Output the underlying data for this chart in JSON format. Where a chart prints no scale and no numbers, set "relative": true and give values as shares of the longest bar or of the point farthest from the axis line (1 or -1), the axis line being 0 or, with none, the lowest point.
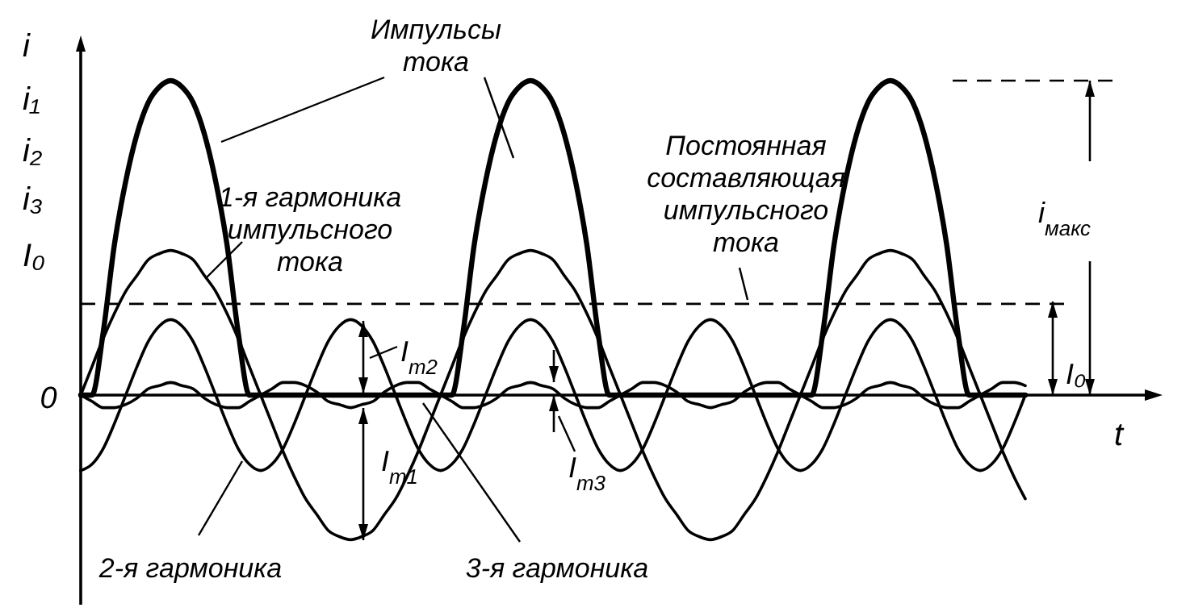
{
  "chart_data": {
    "type": "line",
    "relative": true,
    "xlabel": "t",
    "ylabel": "i\ni₁\ni₂\ni₃\nI₀",
    "categories": [
      null,
      null,
      null,
      null,
      null,
      null,
      null,
      null,
      null,
      null,
      null,
      null,
      null,
      null,
      null,
      null,
      null,
      null,
      null,
      null,
      null,
      null,
      null,
      null,
      null,
      null,
      null,
      null,
      null,
      null,
      null,
      null,
      null,
      null,
      null,
      null,
      null,
      null,
      null,
      null,
      null,
      null,
      null,
      null,
      null,
      null,
      null,
      null,
      null,
      null,
      null,
      null,
      null,
      null,
      null,
      null,
      null,
      null,
      null,
      null,
      null,
      null,
      null,
      null,
      null,
      null,
      null,
      null,
      null,
      null,
      null,
      null,
      null,
      null,
      null,
      null,
      null,
      null,
      null,
      null,
      null,
      null,
      null,
      null,
      null
    ],
    "series": [
      {
        "name": "Импульсы тока",
        "color": "#000000",
        "values": [
          0,
          0,
          0.2,
          0.48,
          0.68,
          0.83,
          0.93,
          0.98,
          1,
          0.98,
          0.93,
          0.83,
          0.68,
          0.48,
          0.2,
          0,
          0,
          0,
          0,
          0,
          0,
          0,
          0,
          0,
          0,
          0,
          0,
          0,
          0,
          0,
          0,
          0,
          0,
          0,
          0.2,
          0.48,
          0.68,
          0.83,
          0.93,
          0.98,
          1,
          0.98,
          0.93,
          0.83,
          0.68,
          0.48,
          0.2,
          0,
          0,
          0,
          0,
          0,
          0,
          0,
          0,
          0,
          0,
          0,
          0,
          0,
          0,
          0,
          0,
          0,
          0,
          0,
          0.2,
          0.48,
          0.68,
          0.83,
          0.93,
          0.98,
          1,
          0.98,
          0.93,
          0.83,
          0.68,
          0.48,
          0.2,
          0,
          0,
          0,
          0,
          0,
          0
        ]
      },
      {
        "name": "1-я гармоника импульсного тока",
        "color": "#000000",
        "values": [
          0,
          0.09,
          0.18,
          0.26,
          0.33,
          0.38,
          0.43,
          0.45,
          0.46,
          0.45,
          0.43,
          0.38,
          0.33,
          0.26,
          0.18,
          0.09,
          0,
          -0.09,
          -0.18,
          -0.26,
          -0.33,
          -0.38,
          -0.43,
          -0.45,
          -0.46,
          -0.45,
          -0.43,
          -0.38,
          -0.33,
          -0.26,
          -0.18,
          -0.09,
          0,
          0.09,
          0.18,
          0.26,
          0.33,
          0.38,
          0.43,
          0.45,
          0.46,
          0.45,
          0.43,
          0.38,
          0.33,
          0.26,
          0.18,
          0.09,
          0,
          -0.09,
          -0.18,
          -0.26,
          -0.33,
          -0.38,
          -0.43,
          -0.45,
          -0.46,
          -0.45,
          -0.43,
          -0.38,
          -0.33,
          -0.26,
          -0.18,
          -0.09,
          0,
          0.09,
          0.18,
          0.26,
          0.33,
          0.38,
          0.43,
          0.45,
          0.46,
          0.45,
          0.43,
          0.38,
          0.33,
          0.26,
          0.18,
          0.09,
          0,
          -0.09,
          -0.18,
          -0.26,
          -0.33
        ]
      },
      {
        "name": "2-я гармоника",
        "color": "#000000",
        "values": [
          -0.24,
          -0.22,
          -0.17,
          -0.09,
          0,
          0.09,
          0.17,
          0.22,
          0.24,
          0.22,
          0.17,
          0.09,
          0,
          -0.09,
          -0.17,
          -0.22,
          -0.24,
          -0.22,
          -0.17,
          -0.09,
          0,
          0.09,
          0.17,
          0.22,
          0.24,
          0.22,
          0.17,
          0.09,
          0,
          -0.09,
          -0.17,
          -0.22,
          -0.24,
          -0.22,
          -0.17,
          -0.09,
          0,
          0.09,
          0.17,
          0.22,
          0.24,
          0.22,
          0.17,
          0.09,
          0,
          -0.09,
          -0.17,
          -0.22,
          -0.24,
          -0.22,
          -0.17,
          -0.09,
          0,
          0.09,
          0.17,
          0.22,
          0.24,
          0.22,
          0.17,
          0.09,
          0,
          -0.09,
          -0.17,
          -0.22,
          -0.24,
          -0.22,
          -0.17,
          -0.09,
          0,
          0.09,
          0.17,
          0.22,
          0.24,
          0.22,
          0.17,
          0.09,
          0,
          -0.09,
          -0.17,
          -0.22,
          -0.24,
          -0.22,
          -0.17,
          -0.09,
          0
        ]
      },
      {
        "name": "3-я гармоника",
        "color": "#000000",
        "values": [
          0,
          -0.02,
          -0.04,
          -0.04,
          -0.03,
          -0.01,
          0.02,
          0.03,
          0.04,
          0.03,
          0.02,
          -0.01,
          -0.03,
          -0.04,
          -0.04,
          -0.02,
          0,
          0.02,
          0.04,
          0.04,
          0.03,
          0.01,
          -0.02,
          -0.03,
          -0.04,
          -0.03,
          -0.02,
          0.01,
          0.03,
          0.04,
          0.04,
          0.02,
          0,
          -0.02,
          -0.04,
          -0.04,
          -0.03,
          -0.01,
          0.02,
          0.03,
          0.04,
          0.03,
          0.02,
          -0.01,
          -0.03,
          -0.04,
          -0.04,
          -0.02,
          0,
          0.02,
          0.04,
          0.04,
          0.03,
          0.01,
          -0.02,
          -0.03,
          -0.04,
          -0.03,
          -0.02,
          0.01,
          0.03,
          0.04,
          0.04,
          0.02,
          0,
          -0.02,
          -0.04,
          -0.04,
          -0.03,
          -0.01,
          0.02,
          0.03,
          0.04,
          0.03,
          0.02,
          -0.01,
          -0.03,
          -0.04,
          -0.04,
          -0.02,
          0,
          0.02,
          0.04,
          0.04,
          0.03
        ]
      }
    ],
    "ref_lines": [
      {
        "axis": "y",
        "value": 0.29,
        "label": "Постоянная составляющая импульсного тока",
        "line_style": "dashed",
        "color": "#000000"
      },
      {
        "axis": "y",
        "value": 1,
        "line_style": "dashed",
        "color": "#000000"
      }
    ],
    "annotations": [
      "0",
      "I$_{m1}$",
      "I$_{m2}$",
      "I$_{m3}$",
      "I₀",
      "i$_{макс}$"
    ]
  }
}
